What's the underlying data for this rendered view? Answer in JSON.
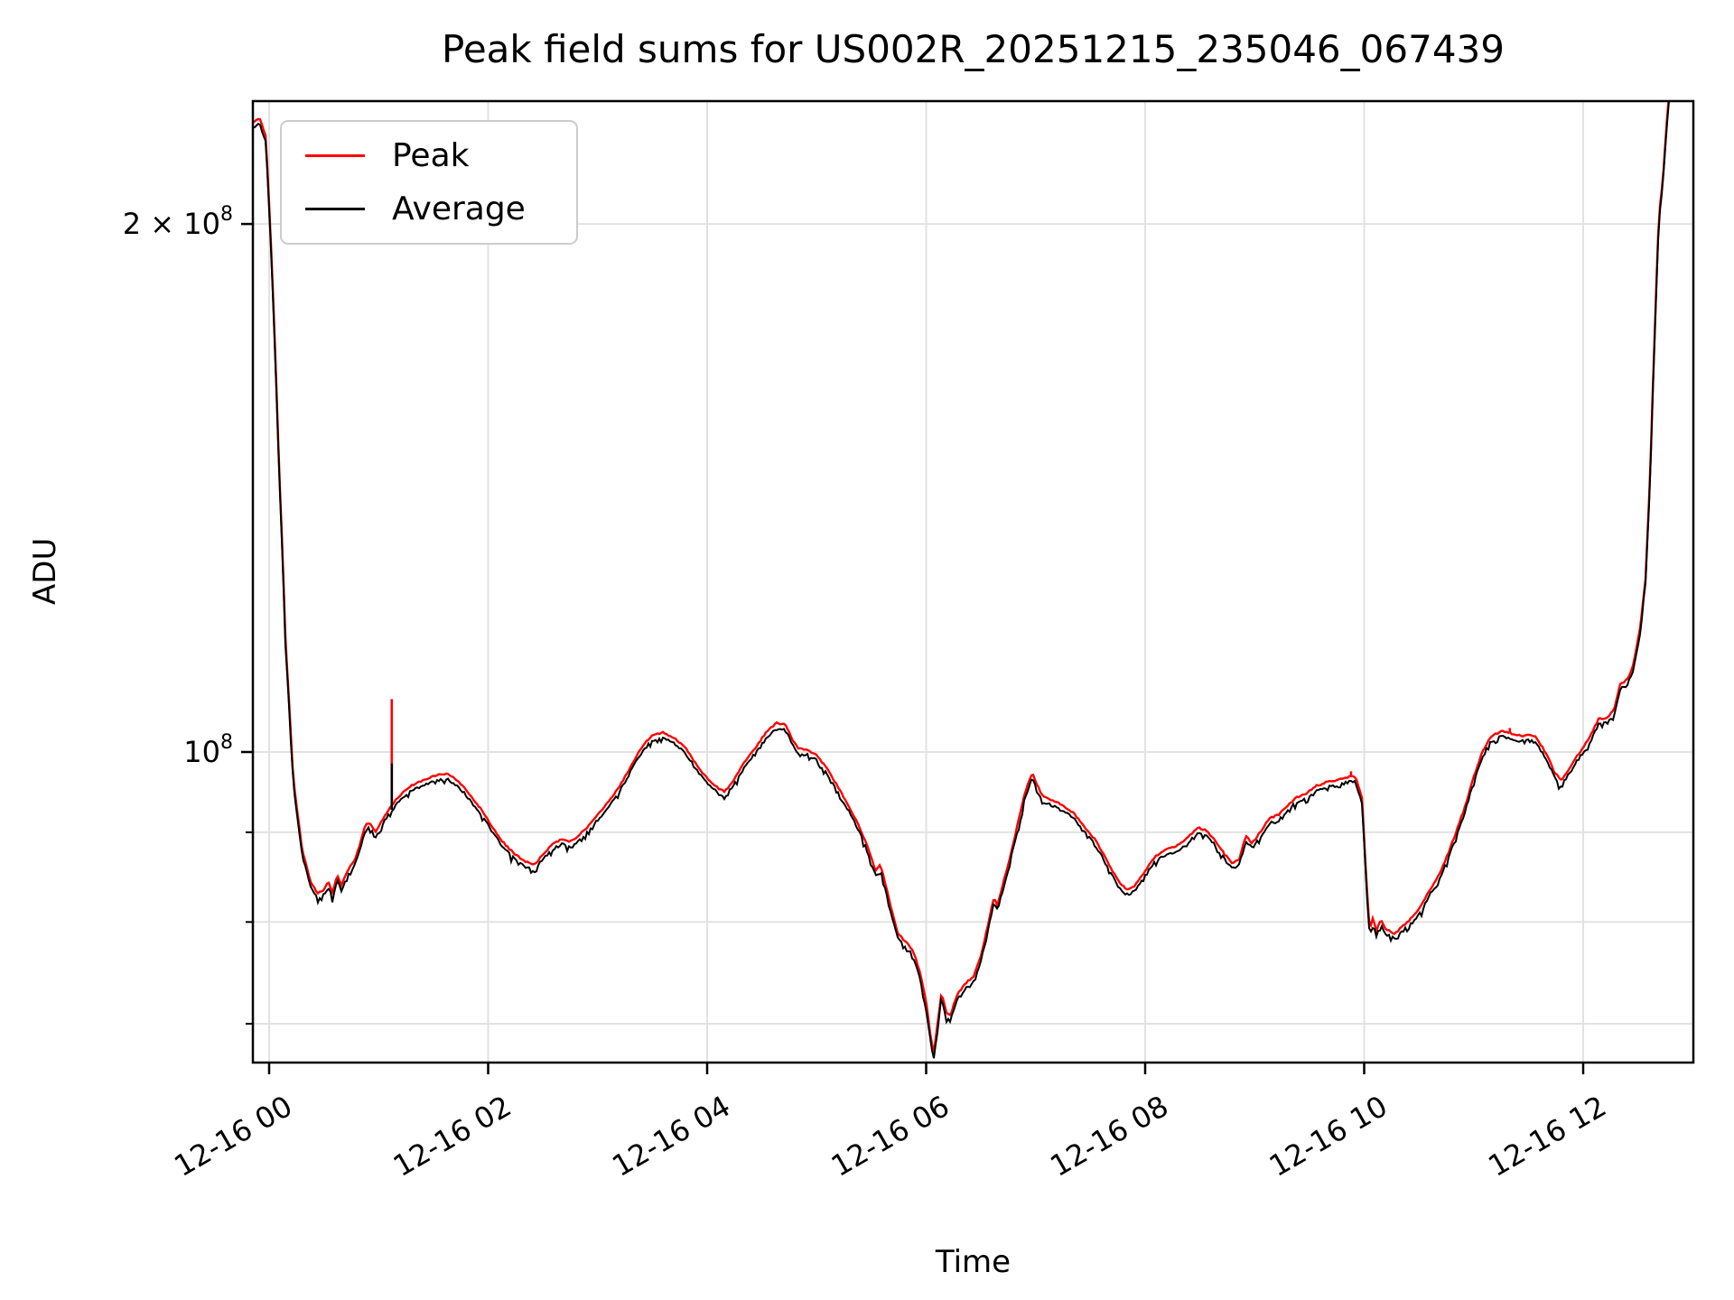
{
  "chart_data": {
    "type": "line",
    "title": "Peak field sums for US002R_20251215_235046_067439",
    "xlabel": "Time",
    "ylabel": "ADU",
    "y_scale": "log",
    "grid": true,
    "legend_position": "upper left",
    "xlim_hours_from_midnight": [
      -0.148,
      13.0
    ],
    "ylim_adu": [
      66500000.0,
      236000000.0
    ],
    "x_ticks": [
      {
        "hour": 0,
        "label": "12-16 00"
      },
      {
        "hour": 2,
        "label": "12-16 02"
      },
      {
        "hour": 4,
        "label": "12-16 04"
      },
      {
        "hour": 6,
        "label": "12-16 06"
      },
      {
        "hour": 8,
        "label": "12-16 08"
      },
      {
        "hour": 10,
        "label": "12-16 10"
      },
      {
        "hour": 12,
        "label": "12-16 12"
      }
    ],
    "y_major_ticks": [
      {
        "value_1e8": 2.0,
        "label_base": "2 × 10",
        "label_exp": "8"
      },
      {
        "value_1e8": 1.0,
        "label_base": "10",
        "label_exp": "8"
      }
    ],
    "y_minor_ticks_1e8": [
      0.9,
      0.8,
      0.7
    ],
    "legend": {
      "entries": [
        {
          "label": "Peak",
          "color": "#ff0000"
        },
        {
          "label": "Average",
          "color": "#000000"
        }
      ]
    },
    "series_unit": "ADU, values stored in units of 1e8",
    "average_keypoints_1e8": [
      [
        -0.148,
        2.27
      ],
      [
        -0.09,
        2.285
      ],
      [
        -0.03,
        2.23
      ],
      [
        0.03,
        1.85
      ],
      [
        0.09,
        1.45
      ],
      [
        0.15,
        1.15
      ],
      [
        0.22,
        0.96
      ],
      [
        0.3,
        0.875
      ],
      [
        0.38,
        0.838
      ],
      [
        0.44,
        0.826
      ],
      [
        0.5,
        0.83
      ],
      [
        0.54,
        0.838
      ],
      [
        0.58,
        0.826
      ],
      [
        0.62,
        0.846
      ],
      [
        0.66,
        0.835
      ],
      [
        0.72,
        0.852
      ],
      [
        0.78,
        0.862
      ],
      [
        0.84,
        0.885
      ],
      [
        0.88,
        0.904
      ],
      [
        0.92,
        0.906
      ],
      [
        0.97,
        0.894
      ],
      [
        1.03,
        0.908
      ],
      [
        1.09,
        0.922
      ],
      [
        1.15,
        0.932
      ],
      [
        1.22,
        0.943
      ],
      [
        1.3,
        0.951
      ],
      [
        1.4,
        0.958
      ],
      [
        1.52,
        0.964
      ],
      [
        1.62,
        0.966
      ],
      [
        1.72,
        0.958
      ],
      [
        1.82,
        0.942
      ],
      [
        1.92,
        0.925
      ],
      [
        2.02,
        0.905
      ],
      [
        2.12,
        0.885
      ],
      [
        2.22,
        0.872
      ],
      [
        2.32,
        0.862
      ],
      [
        2.42,
        0.857
      ],
      [
        2.52,
        0.872
      ],
      [
        2.6,
        0.882
      ],
      [
        2.68,
        0.887
      ],
      [
        2.74,
        0.883
      ],
      [
        2.8,
        0.887
      ],
      [
        2.9,
        0.9
      ],
      [
        3.0,
        0.915
      ],
      [
        3.1,
        0.932
      ],
      [
        3.2,
        0.95
      ],
      [
        3.3,
        0.975
      ],
      [
        3.4,
        1.0
      ],
      [
        3.5,
        1.017
      ],
      [
        3.6,
        1.02
      ],
      [
        3.7,
        1.012
      ],
      [
        3.8,
        1.0
      ],
      [
        3.9,
        0.978
      ],
      [
        4.0,
        0.96
      ],
      [
        4.1,
        0.948
      ],
      [
        4.16,
        0.943
      ],
      [
        4.24,
        0.958
      ],
      [
        4.34,
        0.98
      ],
      [
        4.44,
        1.0
      ],
      [
        4.54,
        1.02
      ],
      [
        4.64,
        1.033
      ],
      [
        4.72,
        1.03
      ],
      [
        4.78,
        1.01
      ],
      [
        4.84,
        0.998
      ],
      [
        4.92,
        0.997
      ],
      [
        5.0,
        0.99
      ],
      [
        5.1,
        0.972
      ],
      [
        5.2,
        0.948
      ],
      [
        5.3,
        0.925
      ],
      [
        5.4,
        0.898
      ],
      [
        5.48,
        0.873
      ],
      [
        5.54,
        0.85
      ],
      [
        5.58,
        0.858
      ],
      [
        5.62,
        0.84
      ],
      [
        5.68,
        0.81
      ],
      [
        5.74,
        0.784
      ],
      [
        5.82,
        0.774
      ],
      [
        5.88,
        0.766
      ],
      [
        5.94,
        0.746
      ],
      [
        6.0,
        0.716
      ],
      [
        6.04,
        0.685
      ],
      [
        6.07,
        0.67
      ],
      [
        6.11,
        0.7
      ],
      [
        6.14,
        0.726
      ],
      [
        6.18,
        0.707
      ],
      [
        6.22,
        0.703
      ],
      [
        6.28,
        0.722
      ],
      [
        6.35,
        0.733
      ],
      [
        6.43,
        0.74
      ],
      [
        6.5,
        0.76
      ],
      [
        6.57,
        0.795
      ],
      [
        6.62,
        0.822
      ],
      [
        6.65,
        0.813
      ],
      [
        6.69,
        0.831
      ],
      [
        6.75,
        0.858
      ],
      [
        6.82,
        0.895
      ],
      [
        6.9,
        0.942
      ],
      [
        6.97,
        0.968
      ],
      [
        7.02,
        0.95
      ],
      [
        7.07,
        0.937
      ],
      [
        7.15,
        0.933
      ],
      [
        7.25,
        0.927
      ],
      [
        7.35,
        0.917
      ],
      [
        7.45,
        0.9
      ],
      [
        7.55,
        0.885
      ],
      [
        7.65,
        0.862
      ],
      [
        7.75,
        0.84
      ],
      [
        7.83,
        0.83
      ],
      [
        7.9,
        0.833
      ],
      [
        7.98,
        0.847
      ],
      [
        8.08,
        0.865
      ],
      [
        8.18,
        0.875
      ],
      [
        8.28,
        0.878
      ],
      [
        8.38,
        0.887
      ],
      [
        8.48,
        0.9
      ],
      [
        8.55,
        0.897
      ],
      [
        8.63,
        0.887
      ],
      [
        8.72,
        0.87
      ],
      [
        8.8,
        0.858
      ],
      [
        8.86,
        0.864
      ],
      [
        8.92,
        0.89
      ],
      [
        8.98,
        0.882
      ],
      [
        9.06,
        0.897
      ],
      [
        9.14,
        0.912
      ],
      [
        9.22,
        0.915
      ],
      [
        9.3,
        0.927
      ],
      [
        9.38,
        0.937
      ],
      [
        9.46,
        0.94
      ],
      [
        9.55,
        0.95
      ],
      [
        9.65,
        0.955
      ],
      [
        9.75,
        0.958
      ],
      [
        9.85,
        0.962
      ],
      [
        9.92,
        0.963
      ],
      [
        9.98,
        0.935
      ],
      [
        10.02,
        0.84
      ],
      [
        10.05,
        0.787
      ],
      [
        10.08,
        0.8
      ],
      [
        10.11,
        0.785
      ],
      [
        10.15,
        0.797
      ],
      [
        10.2,
        0.788
      ],
      [
        10.28,
        0.783
      ],
      [
        10.36,
        0.792
      ],
      [
        10.44,
        0.8
      ],
      [
        10.52,
        0.812
      ],
      [
        10.6,
        0.83
      ],
      [
        10.68,
        0.845
      ],
      [
        10.76,
        0.868
      ],
      [
        10.84,
        0.895
      ],
      [
        10.92,
        0.925
      ],
      [
        11.0,
        0.962
      ],
      [
        11.08,
        0.995
      ],
      [
        11.16,
        1.015
      ],
      [
        11.26,
        1.022
      ],
      [
        11.36,
        1.018
      ],
      [
        11.44,
        1.015
      ],
      [
        11.52,
        1.018
      ],
      [
        11.58,
        1.012
      ],
      [
        11.66,
        0.992
      ],
      [
        11.74,
        0.968
      ],
      [
        11.8,
        0.957
      ],
      [
        11.86,
        0.97
      ],
      [
        11.94,
        0.988
      ],
      [
        12.0,
        1.0
      ],
      [
        12.06,
        1.013
      ],
      [
        12.14,
        1.038
      ],
      [
        12.22,
        1.04
      ],
      [
        12.28,
        1.05
      ],
      [
        12.34,
        1.088
      ],
      [
        12.4,
        1.092
      ],
      [
        12.46,
        1.115
      ],
      [
        12.52,
        1.17
      ],
      [
        12.57,
        1.25
      ],
      [
        12.61,
        1.42
      ],
      [
        12.65,
        1.7
      ],
      [
        12.69,
        2.0
      ],
      [
        12.73,
        2.12
      ],
      [
        12.77,
        2.3
      ],
      [
        12.81,
        2.45
      ]
    ],
    "peak_series_offset_ratio": 1.006,
    "spikes": {
      "peak_1e8": [
        [
          1.12,
          1.072
        ],
        [
          9.88,
          0.975
        ],
        [
          11.33,
          1.032
        ]
      ],
      "average_1e8": [
        [
          1.12,
          0.985
        ]
      ]
    },
    "colors": {
      "peak": "#ff0000",
      "average": "#000000",
      "grid": "#e2e2e2",
      "axis": "#000000",
      "legend_border": "#cccccc",
      "background": "#ffffff"
    }
  }
}
